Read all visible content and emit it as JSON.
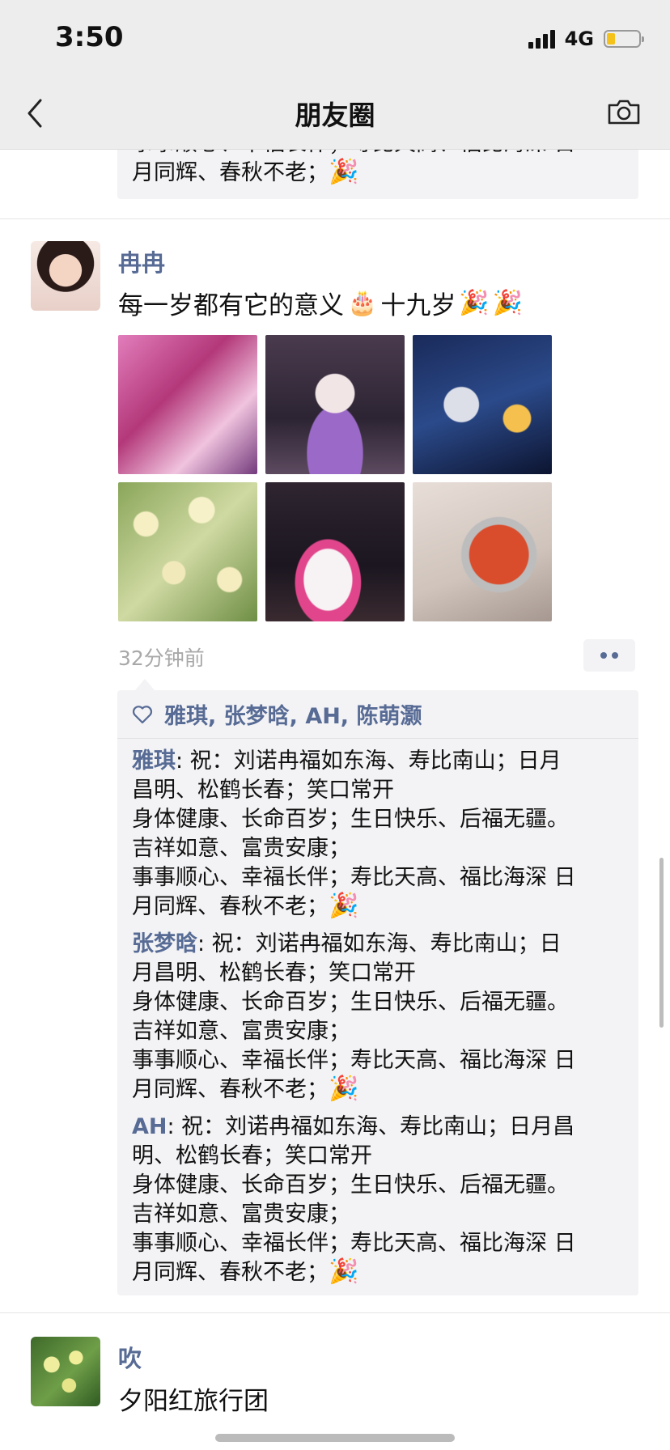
{
  "status_bar": {
    "time": "3:50",
    "network": "4G",
    "battery_level": 0.25
  },
  "nav": {
    "title": "朋友圈",
    "back_icon": "chevron-left-icon",
    "camera_icon": "camera-icon"
  },
  "previous_post": {
    "comment_tail_1": "事事顺心、幸福长伴；寿比天高、福比海深 日",
    "comment_tail_2": "月同辉、春秋不老；"
  },
  "post_main": {
    "author": "冉冉",
    "text": "每一岁都有它的意义",
    "text_after": "十九岁",
    "time": "32分钟前",
    "photo_count": 6,
    "likes": "雅琪, 张梦晗, AH, 陈萌灏",
    "comments": [
      {
        "author": "雅琪",
        "lines": [
          ": 祝：刘诺冉福如东海、寿比南山；日月",
          "昌明、松鹤长春；笑口常开",
          "身体健康、长命百岁；生日快乐、后福无疆。",
          "吉祥如意、富贵安康；",
          "事事顺心、幸福长伴；寿比天高、福比海深 日",
          "月同辉、春秋不老；"
        ]
      },
      {
        "author": "张梦晗",
        "lines": [
          ": 祝：刘诺冉福如东海、寿比南山；日",
          "月昌明、松鹤长春；笑口常开",
          "身体健康、长命百岁；生日快乐、后福无疆。",
          "吉祥如意、富贵安康；",
          "事事顺心、幸福长伴；寿比天高、福比海深 日",
          "月同辉、春秋不老；"
        ]
      },
      {
        "author": "AH",
        "lines": [
          ": 祝：刘诺冉福如东海、寿比南山；日月昌",
          "明、松鹤长春；笑口常开",
          "身体健康、长命百岁；生日快乐、后福无疆。",
          "吉祥如意、富贵安康；",
          "事事顺心、幸福长伴；寿比天高、福比海深 日",
          "月同辉、春秋不老；"
        ]
      }
    ]
  },
  "post_next": {
    "author": "吹",
    "text": "夕阳红旅行团"
  },
  "colors": {
    "link_blue": "#576b95",
    "comment_bg": "#f3f3f5",
    "nav_bg": "#ededed"
  }
}
